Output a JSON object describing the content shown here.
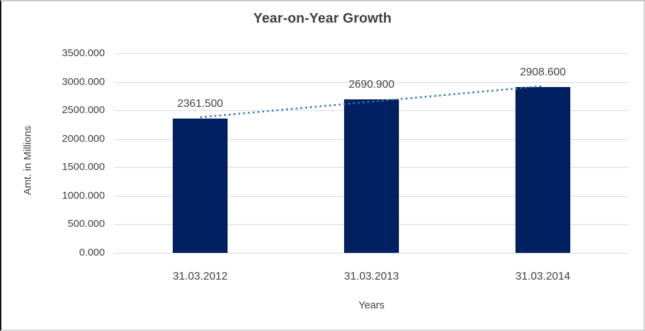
{
  "chart_data": {
    "type": "bar",
    "title": "Year-on-Year Growth",
    "categories": [
      "31.03.2012",
      "31.03.2013",
      "31.03.2014"
    ],
    "values": [
      2361.5,
      2690.9,
      2908.6
    ],
    "data_labels": [
      "2361.500",
      "2690.900",
      "2908.600"
    ],
    "xlabel": "Years",
    "ylabel": "Amt. in Millions",
    "ylim": [
      0,
      3500
    ],
    "ytick_step": 500,
    "ytick_labels": [
      "0.000",
      "500.000",
      "1000.000",
      "1500.000",
      "2000.000",
      "2500.000",
      "3000.000",
      "3500.000"
    ],
    "grid": true,
    "legend": "none",
    "trendline": {
      "type": "linear",
      "style": "dotted"
    },
    "colors": {
      "bar": "#002060",
      "trendline": "#2E75B6",
      "gridline": "#D9D9D9",
      "text": "#404040",
      "title": "#3F3F3F",
      "background": "#FFFFFF"
    }
  }
}
